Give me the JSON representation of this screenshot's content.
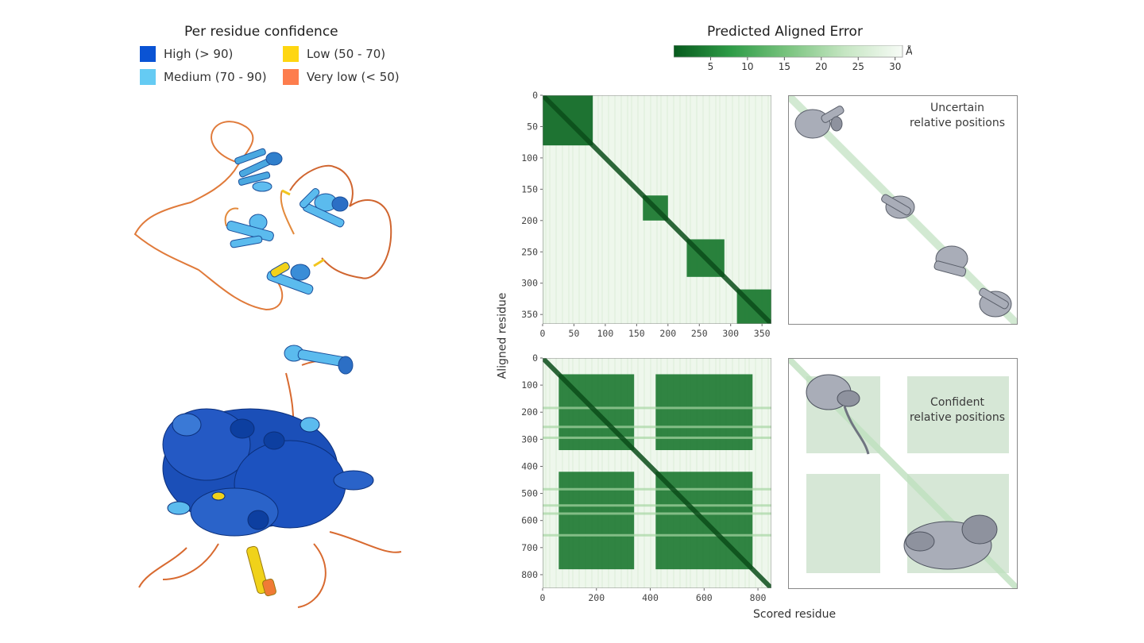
{
  "plddt_legend": {
    "title": "Per residue confidence",
    "items": [
      {
        "label": "High (> 90)",
        "color": "#0a53d4"
      },
      {
        "label": "Low (50 - 70)",
        "color": "#fed611"
      },
      {
        "label": "Medium (70 - 90)",
        "color": "#65cbf3"
      },
      {
        "label": "Very low (< 50)",
        "color": "#fd7d4d"
      }
    ]
  },
  "structure_top": {
    "name": "protein-structure-1",
    "description": "four small domains linked by flexible loops"
  },
  "structure_bottom": {
    "name": "protein-structure-2",
    "description": "two large domains packed together"
  },
  "pae": {
    "title": "Predicted Aligned Error",
    "colorbar_ticks": [
      "5",
      "10",
      "15",
      "20",
      "25",
      "30"
    ],
    "colorbar_unit": "Å",
    "colors": {
      "low": "#075a1d",
      "high": "#ffffff"
    }
  },
  "chart_data": [
    {
      "type": "heatmap",
      "title": "Predicted Aligned Error",
      "xlabel": "Scored residue",
      "ylabel": "Aligned residue",
      "n_residues": 365,
      "x_ticks": [
        "0",
        "50",
        "100",
        "150",
        "200",
        "250",
        "300",
        "350"
      ],
      "y_ticks": [
        "0",
        "50",
        "100",
        "150",
        "200",
        "250",
        "300",
        "350"
      ],
      "confident_blocks": [
        [
          0,
          80
        ],
        [
          160,
          200
        ],
        [
          230,
          290
        ],
        [
          310,
          365
        ]
      ],
      "value_range": [
        0,
        30
      ]
    },
    {
      "type": "heatmap",
      "title": "Predicted Aligned Error",
      "xlabel": "Scored residue",
      "ylabel": "Aligned residue",
      "n_residues": 850,
      "x_ticks": [
        "0",
        "200",
        "400",
        "600",
        "800"
      ],
      "y_ticks": [
        "0",
        "100",
        "200",
        "300",
        "400",
        "500",
        "600",
        "700",
        "800"
      ],
      "confident_blocks": [
        [
          60,
          340
        ],
        [
          420,
          780
        ]
      ],
      "value_range": [
        0,
        30
      ]
    }
  ],
  "annotations": {
    "top": "Uncertain\nrelative positions",
    "bottom": "Confident\nrelative positions"
  },
  "axes": {
    "xlabel": "Scored residue",
    "ylabel": "Aligned residue"
  }
}
